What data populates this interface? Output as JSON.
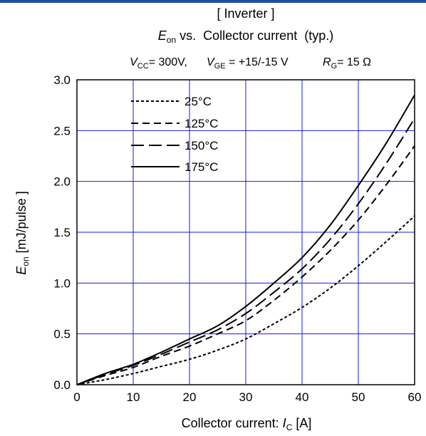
{
  "header": {
    "title_line1": "[ Inverter ]",
    "title_line2": {
      "var": "E",
      "sub": "on",
      "rest": " vs.  Collector current  (typ.)"
    },
    "conditions": [
      {
        "var": "V",
        "sub": "CC",
        "rest": "= 300V,"
      },
      {
        "var": "V",
        "sub": "GE",
        "rest": " = +15/-15 V"
      },
      {
        "var": "R",
        "sub": "G",
        "rest": "= 15 Ω"
      }
    ]
  },
  "axes": {
    "x": {
      "prefix": "Collector current: ",
      "var": "I",
      "sub": "C",
      "suffix": " [A]"
    },
    "y": {
      "var": "E",
      "sub": "on",
      "suffix": " [mJ/pulse ]"
    }
  },
  "chart_data": {
    "type": "line",
    "xlim": [
      0,
      60
    ],
    "ylim": [
      0.0,
      3.0
    ],
    "xticks": [
      "0",
      "10",
      "20",
      "30",
      "40",
      "50",
      "60"
    ],
    "yticks": [
      "0.0",
      "0.5",
      "1.0",
      "1.5",
      "2.0",
      "2.5",
      "3.0"
    ],
    "grid": true,
    "legend_position": "top-left",
    "series": [
      {
        "name": "25°C",
        "dash": "short",
        "x": [
          0,
          5,
          10,
          15,
          20,
          25,
          30,
          35,
          40,
          45,
          50,
          55,
          60
        ],
        "y": [
          0.0,
          0.05,
          0.11,
          0.18,
          0.25,
          0.34,
          0.45,
          0.6,
          0.76,
          0.95,
          1.17,
          1.41,
          1.66
        ]
      },
      {
        "name": "125°C",
        "dash": "medium",
        "x": [
          0,
          5,
          10,
          15,
          20,
          25,
          30,
          35,
          40,
          45,
          50,
          55,
          60
        ],
        "y": [
          0.0,
          0.09,
          0.17,
          0.28,
          0.38,
          0.5,
          0.63,
          0.83,
          1.06,
          1.32,
          1.62,
          1.97,
          2.35
        ]
      },
      {
        "name": "150°C",
        "dash": "long",
        "x": [
          0,
          5,
          10,
          15,
          20,
          25,
          30,
          35,
          40,
          45,
          50,
          55,
          60
        ],
        "y": [
          0.0,
          0.1,
          0.19,
          0.3,
          0.42,
          0.54,
          0.7,
          0.91,
          1.14,
          1.43,
          1.78,
          2.18,
          2.62
        ]
      },
      {
        "name": "175°C",
        "dash": "solid",
        "x": [
          0,
          5,
          10,
          15,
          20,
          25,
          30,
          35,
          40,
          45,
          50,
          55,
          60
        ],
        "y": [
          0.0,
          0.11,
          0.2,
          0.32,
          0.45,
          0.58,
          0.77,
          1.0,
          1.25,
          1.57,
          1.96,
          2.38,
          2.85
        ]
      }
    ]
  },
  "colors": {
    "grid": "#1a1ae0",
    "line": "#000000",
    "frame": "#000000",
    "topbar": "#1f4e9c"
  }
}
